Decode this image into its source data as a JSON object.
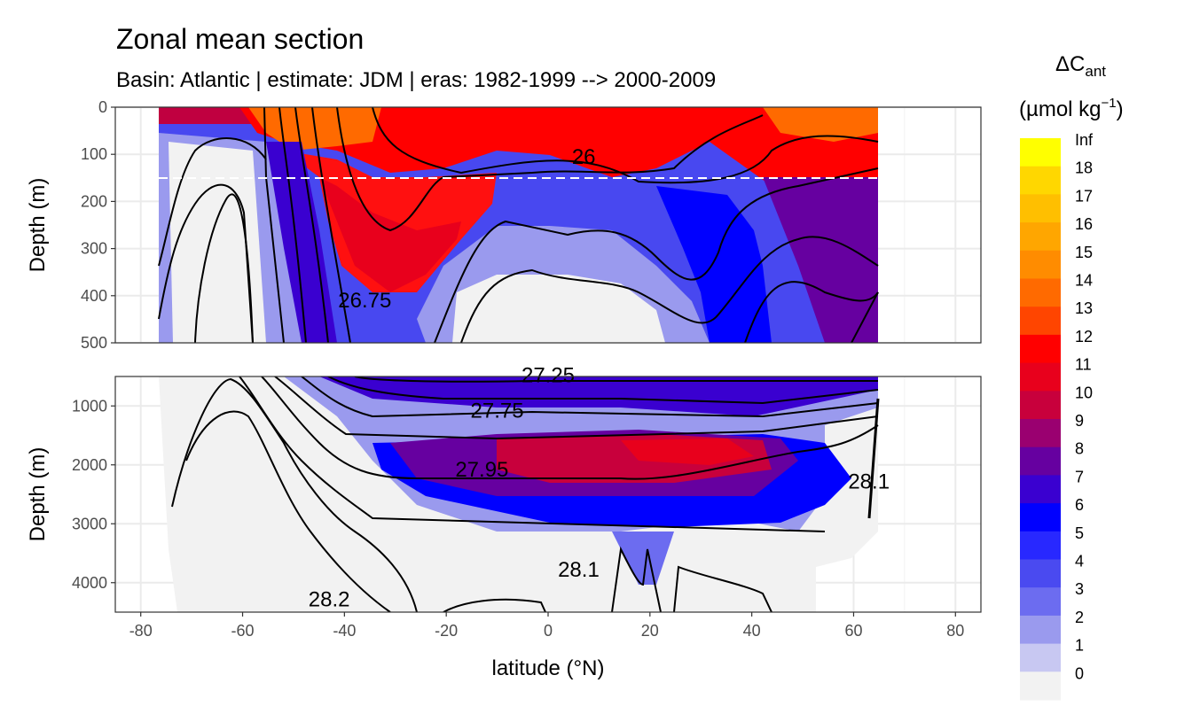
{
  "title": "Zonal mean section",
  "subtitle": "Basin: Atlantic | estimate: JDM  | eras: 1982-1999 --> 2000-2009",
  "chart_data": {
    "type": "contour-section",
    "title": "Zonal mean section",
    "subtitle": "Basin: Atlantic | estimate: JDM  | eras: 1982-1999 --> 2000-2009",
    "xlabel": "latitude (°N)",
    "ylabel": "Depth (m)",
    "xlim": [
      -85,
      85
    ],
    "x_ticks": [
      "-80",
      "-60",
      "-40",
      "-20",
      "0",
      "20",
      "40",
      "60",
      "80"
    ],
    "x_tick_values": [
      -80,
      -60,
      -40,
      -20,
      0,
      20,
      40,
      60,
      80
    ],
    "panels": [
      {
        "name": "upper",
        "ylim": [
          0,
          500
        ],
        "y_ticks": [
          "0",
          "100",
          "200",
          "300",
          "400",
          "500"
        ],
        "y_tick_values": [
          0,
          100,
          200,
          300,
          400,
          500
        ]
      },
      {
        "name": "lower",
        "ylim": [
          500,
          4500
        ],
        "y_ticks": [
          "1000",
          "2000",
          "3000",
          "4000"
        ],
        "y_tick_values": [
          1000,
          2000,
          3000,
          4000
        ]
      }
    ],
    "reference_line_depth": 150,
    "data_lat_range": [
      -77,
      65
    ],
    "legend": {
      "title_main": "ΔC",
      "title_sub": "ant",
      "units_prefix": "(µmol kg",
      "units_sup": "−1",
      "units_suffix": ")",
      "labels": [
        "Inf",
        "18",
        "17",
        "16",
        "15",
        "14",
        "13",
        "12",
        "11",
        "10",
        "9",
        "8",
        "7",
        "6",
        "5",
        "4",
        "3",
        "2",
        "1",
        "0"
      ],
      "colors": [
        "#ffff00",
        "#ffd700",
        "#ffbf00",
        "#ffa600",
        "#ff8c00",
        "#ff6a00",
        "#ff4500",
        "#ff0000",
        "#e8001c",
        "#c8003c",
        "#9a0070",
        "#6600a0",
        "#3a00d0",
        "#0000ff",
        "#2828ff",
        "#4a4af0",
        "#6c6cf0",
        "#9a9aee",
        "#c8c8f2",
        "#f2f2f2"
      ]
    },
    "contour_labels_upper": [
      {
        "text": "26",
        "lat": 7,
        "depth": 120
      },
      {
        "text": "26.75",
        "lat": -36,
        "depth": 425
      }
    ],
    "contour_labels_lower": [
      {
        "text": "27.25",
        "lat": 0,
        "depth": 600
      },
      {
        "text": "27.75",
        "lat": -10,
        "depth": 1200
      },
      {
        "text": "27.95",
        "lat": -13,
        "depth": 2200
      },
      {
        "text": "28.1",
        "lat": 6,
        "depth": 3900
      },
      {
        "text": "28.2",
        "lat": -43,
        "depth": 4400
      },
      {
        "text": "28.1",
        "lat": 63,
        "depth": 2400
      }
    ]
  }
}
